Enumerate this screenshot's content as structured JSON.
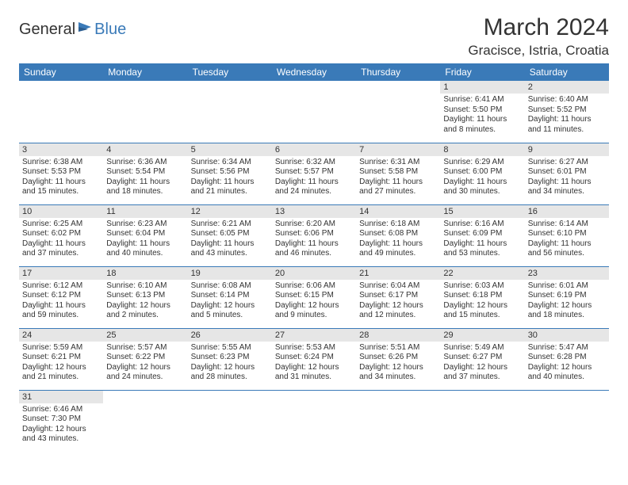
{
  "logo": {
    "general": "General",
    "blue": "Blue"
  },
  "title": "March 2024",
  "location": "Gracisce, Istria, Croatia",
  "colors": {
    "header_bg": "#3a7ab8",
    "header_text": "#ffffff",
    "daynum_bg": "#e6e6e6",
    "text": "#333333",
    "border": "#3a7ab8",
    "background": "#ffffff"
  },
  "weekdays": [
    "Sunday",
    "Monday",
    "Tuesday",
    "Wednesday",
    "Thursday",
    "Friday",
    "Saturday"
  ],
  "weeks": [
    [
      null,
      null,
      null,
      null,
      null,
      {
        "n": "1",
        "sr": "6:41 AM",
        "ss": "5:50 PM",
        "dl": "11 hours and 8 minutes."
      },
      {
        "n": "2",
        "sr": "6:40 AM",
        "ss": "5:52 PM",
        "dl": "11 hours and 11 minutes."
      }
    ],
    [
      {
        "n": "3",
        "sr": "6:38 AM",
        "ss": "5:53 PM",
        "dl": "11 hours and 15 minutes."
      },
      {
        "n": "4",
        "sr": "6:36 AM",
        "ss": "5:54 PM",
        "dl": "11 hours and 18 minutes."
      },
      {
        "n": "5",
        "sr": "6:34 AM",
        "ss": "5:56 PM",
        "dl": "11 hours and 21 minutes."
      },
      {
        "n": "6",
        "sr": "6:32 AM",
        "ss": "5:57 PM",
        "dl": "11 hours and 24 minutes."
      },
      {
        "n": "7",
        "sr": "6:31 AM",
        "ss": "5:58 PM",
        "dl": "11 hours and 27 minutes."
      },
      {
        "n": "8",
        "sr": "6:29 AM",
        "ss": "6:00 PM",
        "dl": "11 hours and 30 minutes."
      },
      {
        "n": "9",
        "sr": "6:27 AM",
        "ss": "6:01 PM",
        "dl": "11 hours and 34 minutes."
      }
    ],
    [
      {
        "n": "10",
        "sr": "6:25 AM",
        "ss": "6:02 PM",
        "dl": "11 hours and 37 minutes."
      },
      {
        "n": "11",
        "sr": "6:23 AM",
        "ss": "6:04 PM",
        "dl": "11 hours and 40 minutes."
      },
      {
        "n": "12",
        "sr": "6:21 AM",
        "ss": "6:05 PM",
        "dl": "11 hours and 43 minutes."
      },
      {
        "n": "13",
        "sr": "6:20 AM",
        "ss": "6:06 PM",
        "dl": "11 hours and 46 minutes."
      },
      {
        "n": "14",
        "sr": "6:18 AM",
        "ss": "6:08 PM",
        "dl": "11 hours and 49 minutes."
      },
      {
        "n": "15",
        "sr": "6:16 AM",
        "ss": "6:09 PM",
        "dl": "11 hours and 53 minutes."
      },
      {
        "n": "16",
        "sr": "6:14 AM",
        "ss": "6:10 PM",
        "dl": "11 hours and 56 minutes."
      }
    ],
    [
      {
        "n": "17",
        "sr": "6:12 AM",
        "ss": "6:12 PM",
        "dl": "11 hours and 59 minutes."
      },
      {
        "n": "18",
        "sr": "6:10 AM",
        "ss": "6:13 PM",
        "dl": "12 hours and 2 minutes."
      },
      {
        "n": "19",
        "sr": "6:08 AM",
        "ss": "6:14 PM",
        "dl": "12 hours and 5 minutes."
      },
      {
        "n": "20",
        "sr": "6:06 AM",
        "ss": "6:15 PM",
        "dl": "12 hours and 9 minutes."
      },
      {
        "n": "21",
        "sr": "6:04 AM",
        "ss": "6:17 PM",
        "dl": "12 hours and 12 minutes."
      },
      {
        "n": "22",
        "sr": "6:03 AM",
        "ss": "6:18 PM",
        "dl": "12 hours and 15 minutes."
      },
      {
        "n": "23",
        "sr": "6:01 AM",
        "ss": "6:19 PM",
        "dl": "12 hours and 18 minutes."
      }
    ],
    [
      {
        "n": "24",
        "sr": "5:59 AM",
        "ss": "6:21 PM",
        "dl": "12 hours and 21 minutes."
      },
      {
        "n": "25",
        "sr": "5:57 AM",
        "ss": "6:22 PM",
        "dl": "12 hours and 24 minutes."
      },
      {
        "n": "26",
        "sr": "5:55 AM",
        "ss": "6:23 PM",
        "dl": "12 hours and 28 minutes."
      },
      {
        "n": "27",
        "sr": "5:53 AM",
        "ss": "6:24 PM",
        "dl": "12 hours and 31 minutes."
      },
      {
        "n": "28",
        "sr": "5:51 AM",
        "ss": "6:26 PM",
        "dl": "12 hours and 34 minutes."
      },
      {
        "n": "29",
        "sr": "5:49 AM",
        "ss": "6:27 PM",
        "dl": "12 hours and 37 minutes."
      },
      {
        "n": "30",
        "sr": "5:47 AM",
        "ss": "6:28 PM",
        "dl": "12 hours and 40 minutes."
      }
    ],
    [
      {
        "n": "31",
        "sr": "6:46 AM",
        "ss": "7:30 PM",
        "dl": "12 hours and 43 minutes."
      },
      null,
      null,
      null,
      null,
      null,
      null
    ]
  ],
  "labels": {
    "sunrise": "Sunrise:",
    "sunset": "Sunset:",
    "daylight": "Daylight:"
  }
}
